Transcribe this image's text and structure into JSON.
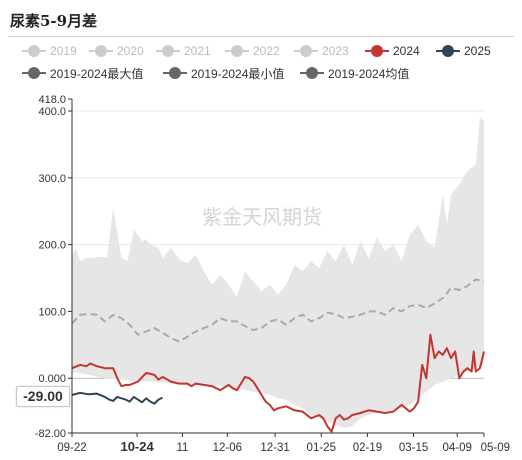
{
  "header": {
    "title": "尿素5-9月差"
  },
  "current_value_label": "-29.00",
  "watermark": "紫金天风期货",
  "colors": {
    "faded_year": "#cccccc",
    "y2024": "#c23531",
    "y2025": "#2f4554",
    "stat_lines": "#666666",
    "range_band": "#e6e6e6",
    "avg_line": "#aaaaaa"
  },
  "legend": [
    {
      "name": "2019",
      "type": "faded",
      "color": "#cccccc",
      "text_color": "#bbbbbb"
    },
    {
      "name": "2020",
      "type": "faded",
      "color": "#cccccc",
      "text_color": "#bbbbbb"
    },
    {
      "name": "2021",
      "type": "faded",
      "color": "#cccccc",
      "text_color": "#bbbbbb"
    },
    {
      "name": "2022",
      "type": "faded",
      "color": "#cccccc",
      "text_color": "#bbbbbb"
    },
    {
      "name": "2023",
      "type": "faded",
      "color": "#cccccc",
      "text_color": "#bbbbbb"
    },
    {
      "name": "2024",
      "type": "active",
      "color": "#c23531",
      "text_color": "#333333"
    },
    {
      "name": "2025",
      "type": "active",
      "color": "#2f4554",
      "text_color": "#333333"
    },
    {
      "name": "2019-2024最大值",
      "type": "active",
      "color": "#666666",
      "text_color": "#333333"
    },
    {
      "name": "2019-2024最小值",
      "type": "active",
      "color": "#666666",
      "text_color": "#333333"
    },
    {
      "name": "2019-2024均值",
      "type": "active",
      "color": "#666666",
      "text_color": "#333333"
    }
  ],
  "chart_data": {
    "type": "area",
    "title": "尿素5-9月差",
    "ylim": [
      -82.0,
      418.0
    ],
    "yticks": [
      "418.0",
      "400.0",
      "300.0",
      "200.0",
      "100.0",
      "0.000",
      "-82.00"
    ],
    "ytick_values": [
      418,
      400,
      300,
      200,
      100,
      0,
      -82
    ],
    "x_range": [
      "09-22",
      "05-09"
    ],
    "xticks": [
      "09-22",
      "10-24",
      "11",
      "12-06",
      "12-31",
      "01-25",
      "02-19",
      "03-15",
      "04-09",
      "05-09"
    ],
    "xtick_positions": [
      0,
      0.158,
      0.268,
      0.377,
      0.493,
      0.605,
      0.717,
      0.829,
      0.935,
      1.0
    ],
    "highlighted_xtick": "10-24",
    "grid": true,
    "series": [
      {
        "name": "2019-2024最大值",
        "x": [
          0,
          0.01,
          0.02,
          0.035,
          0.05,
          0.07,
          0.085,
          0.1,
          0.12,
          0.135,
          0.15,
          0.16,
          0.17,
          0.18,
          0.19,
          0.2,
          0.21,
          0.22,
          0.24,
          0.26,
          0.28,
          0.3,
          0.32,
          0.34,
          0.36,
          0.38,
          0.4,
          0.42,
          0.44,
          0.46,
          0.48,
          0.5,
          0.52,
          0.54,
          0.56,
          0.58,
          0.6,
          0.62,
          0.64,
          0.66,
          0.68,
          0.7,
          0.72,
          0.74,
          0.76,
          0.78,
          0.8,
          0.82,
          0.84,
          0.86,
          0.88,
          0.9,
          0.91,
          0.92,
          0.94,
          0.96,
          0.97,
          0.98,
          0.99,
          1.0
        ],
        "values": [
          185,
          195,
          175,
          180,
          180,
          182,
          180,
          255,
          180,
          175,
          222,
          215,
          205,
          208,
          200,
          198,
          195,
          180,
          195,
          178,
          172,
          185,
          160,
          140,
          155,
          140,
          122,
          160,
          145,
          130,
          140,
          125,
          140,
          170,
          160,
          175,
          165,
          190,
          175,
          200,
          170,
          205,
          180,
          210,
          190,
          200,
          175,
          215,
          230,
          205,
          195,
          275,
          230,
          275,
          290,
          310,
          315,
          320,
          390,
          385
        ]
      },
      {
        "name": "2019-2024最小值",
        "x": [
          0,
          0.04,
          0.08,
          0.12,
          0.16,
          0.2,
          0.24,
          0.28,
          0.32,
          0.36,
          0.4,
          0.44,
          0.48,
          0.5,
          0.52,
          0.54,
          0.56,
          0.58,
          0.6,
          0.62,
          0.64,
          0.66,
          0.68,
          0.7,
          0.72,
          0.74,
          0.76,
          0.78,
          0.8,
          0.82,
          0.84,
          0.86,
          0.88,
          0.9,
          0.92,
          0.94,
          0.96,
          0.98,
          1.0
        ],
        "values": [
          10,
          5,
          0,
          -2,
          -5,
          -5,
          -8,
          -10,
          -10,
          -12,
          -15,
          -20,
          -25,
          -30,
          -32,
          -40,
          -45,
          -55,
          -60,
          -65,
          -70,
          -74,
          -72,
          -60,
          -55,
          -52,
          -50,
          -48,
          -45,
          -40,
          -30,
          -20,
          -10,
          -5,
          0,
          5,
          10,
          15,
          20
        ]
      },
      {
        "name": "2019-2024均值",
        "x": [
          0,
          0.02,
          0.04,
          0.06,
          0.08,
          0.1,
          0.12,
          0.14,
          0.16,
          0.18,
          0.2,
          0.22,
          0.24,
          0.26,
          0.28,
          0.3,
          0.32,
          0.34,
          0.36,
          0.38,
          0.4,
          0.42,
          0.44,
          0.46,
          0.48,
          0.5,
          0.52,
          0.54,
          0.56,
          0.58,
          0.6,
          0.62,
          0.64,
          0.66,
          0.68,
          0.7,
          0.72,
          0.74,
          0.76,
          0.78,
          0.8,
          0.82,
          0.84,
          0.86,
          0.88,
          0.9,
          0.92,
          0.94,
          0.96,
          0.98,
          1.0
        ],
        "values": [
          82,
          95,
          96,
          95,
          85,
          95,
          90,
          80,
          65,
          70,
          75,
          68,
          60,
          55,
          62,
          70,
          75,
          80,
          90,
          85,
          85,
          78,
          72,
          75,
          85,
          88,
          80,
          90,
          95,
          85,
          90,
          98,
          96,
          90,
          92,
          95,
          100,
          100,
          95,
          105,
          100,
          108,
          110,
          105,
          112,
          120,
          135,
          132,
          138,
          148,
          145
        ]
      },
      {
        "name": "2024",
        "x": [
          0,
          0.02,
          0.035,
          0.045,
          0.06,
          0.08,
          0.1,
          0.11,
          0.12,
          0.13,
          0.14,
          0.16,
          0.18,
          0.2,
          0.21,
          0.22,
          0.24,
          0.26,
          0.28,
          0.29,
          0.3,
          0.32,
          0.34,
          0.36,
          0.38,
          0.39,
          0.4,
          0.41,
          0.42,
          0.43,
          0.44,
          0.45,
          0.46,
          0.47,
          0.48,
          0.49,
          0.5,
          0.52,
          0.54,
          0.56,
          0.58,
          0.6,
          0.61,
          0.62,
          0.63,
          0.64,
          0.65,
          0.66,
          0.67,
          0.68,
          0.7,
          0.72,
          0.74,
          0.76,
          0.78,
          0.8,
          0.82,
          0.83,
          0.84,
          0.85,
          0.86,
          0.87,
          0.88,
          0.89,
          0.9,
          0.91,
          0.92,
          0.93,
          0.94,
          0.95,
          0.96,
          0.97,
          0.975,
          0.98,
          0.99,
          1.0
        ],
        "values": [
          15,
          20,
          18,
          22,
          18,
          15,
          15,
          0,
          -12,
          -10,
          -10,
          -5,
          8,
          5,
          -2,
          2,
          -5,
          -8,
          -8,
          -12,
          -8,
          -10,
          -12,
          -18,
          -10,
          -15,
          -18,
          -8,
          2,
          0,
          -5,
          -15,
          -25,
          -35,
          -40,
          -48,
          -45,
          -42,
          -48,
          -50,
          -60,
          -55,
          -60,
          -72,
          -80,
          -60,
          -55,
          -62,
          -60,
          -55,
          -52,
          -48,
          -50,
          -52,
          -50,
          -40,
          -50,
          -45,
          -35,
          20,
          0,
          65,
          30,
          40,
          35,
          45,
          30,
          40,
          0,
          10,
          15,
          10,
          40,
          10,
          15,
          40
        ]
      },
      {
        "name": "2025",
        "x": [
          0,
          0.02,
          0.04,
          0.06,
          0.08,
          0.09,
          0.1,
          0.11,
          0.12,
          0.13,
          0.14,
          0.15,
          0.16,
          0.17,
          0.18,
          0.19,
          0.2,
          0.21,
          0.22
        ],
        "values": [
          -25,
          -22,
          -24,
          -23,
          -28,
          -32,
          -34,
          -28,
          -30,
          -32,
          -35,
          -28,
          -32,
          -36,
          -30,
          -35,
          -38,
          -32,
          -29
        ]
      }
    ]
  }
}
